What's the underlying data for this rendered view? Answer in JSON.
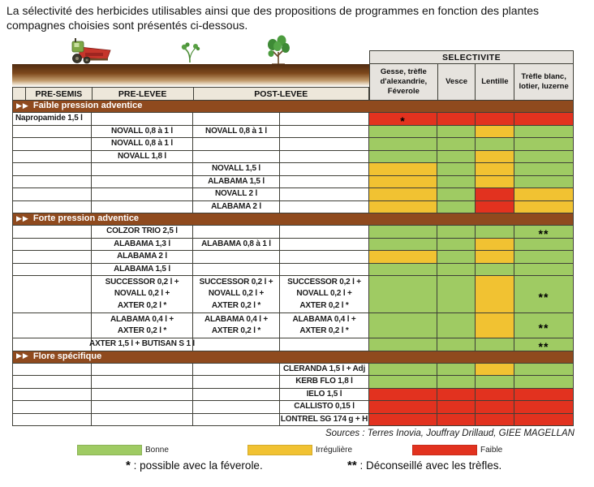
{
  "intro": "La sélectivité des herbicides utilisables ainsi que des propositions de programmes en fonction des plantes compagnes choisies sont présentés ci-dessous.",
  "colors": {
    "good": "#9FCB63",
    "irregular": "#F1C232",
    "poor": "#E2321F",
    "section_brown": "#8F4A1E"
  },
  "icons": {
    "pre_semis": "tractor-icon",
    "pre_levee": "seedling-icon",
    "post_levee": "plant-icon"
  },
  "table": {
    "arrow_glyph": "▶▶",
    "selectivity_title": "SELECTIVITE",
    "stage_columns": [
      "PRE-SEMIS",
      "PRE-LEVEE",
      "POST-LEVEE"
    ],
    "species_columns": [
      "Gesse, trèfle\nd'alexandrie,\nFéverole",
      "Vesce",
      "Lentille",
      "Trèfle blanc,\nlotier, luzerne"
    ],
    "sections": [
      {
        "title": "Faible pression adventice",
        "rows": [
          {
            "cells": [
              "Napropamide 1,5 l",
              "",
              "",
              ""
            ],
            "sel": [
              "R",
              "R",
              "R",
              "R"
            ],
            "marks": [
              "*",
              "",
              "",
              ""
            ]
          },
          {
            "cells": [
              "",
              "NOVALL 0,8 à 1 l",
              "NOVALL 0,8 à 1 l",
              ""
            ],
            "sel": [
              "G",
              "G",
              "Y",
              "G"
            ]
          },
          {
            "cells": [
              "",
              "NOVALL 0,8 à 1 l",
              "",
              ""
            ],
            "sel": [
              "G",
              "G",
              "G",
              "G"
            ]
          },
          {
            "cells": [
              "",
              "NOVALL 1,8 l",
              "",
              ""
            ],
            "sel": [
              "G",
              "G",
              "Y",
              "G"
            ]
          },
          {
            "cells": [
              "",
              "",
              "NOVALL 1,5 l",
              ""
            ],
            "sel": [
              "Y",
              "G",
              "Y",
              "G"
            ]
          },
          {
            "cells": [
              "",
              "",
              "ALABAMA 1,5 l",
              ""
            ],
            "sel": [
              "Y",
              "G",
              "Y",
              "G"
            ]
          },
          {
            "cells": [
              "",
              "",
              "NOVALL 2 l",
              ""
            ],
            "sel": [
              "Y",
              "G",
              "R",
              "Y"
            ]
          },
          {
            "cells": [
              "",
              "",
              "ALABAMA 2 l",
              ""
            ],
            "sel": [
              "Y",
              "G",
              "R",
              "Y"
            ]
          }
        ]
      },
      {
        "title": "Forte pression adventice",
        "rows": [
          {
            "cells": [
              "",
              "COLZOR TRIO 2,5 l",
              "",
              ""
            ],
            "sel": [
              "G",
              "G",
              "G",
              "G"
            ],
            "marks": [
              "",
              "",
              "",
              "**"
            ]
          },
          {
            "cells": [
              "",
              "ALABAMA 1,3 l",
              "ALABAMA 0,8 à 1 l",
              ""
            ],
            "sel": [
              "G",
              "G",
              "Y",
              "G"
            ]
          },
          {
            "cells": [
              "",
              "ALABAMA 2 l",
              "",
              ""
            ],
            "sel": [
              "Y",
              "G",
              "Y",
              "G"
            ]
          },
          {
            "cells": [
              "",
              "ALABAMA 1,5 l",
              "",
              ""
            ],
            "sel": [
              "G",
              "G",
              "G",
              "G"
            ]
          },
          {
            "cells": [
              "",
              "SUCCESSOR 0,2 l +\nNOVALL 0,2 l +\nAXTER 0,2 l *",
              "SUCCESSOR 0,2 l +\nNOVALL 0,2 l +\nAXTER 0,2 l *",
              "SUCCESSOR 0,2 l +\nNOVALL 0,2 l +\nAXTER 0,2 l *"
            ],
            "sel": [
              "G",
              "G",
              "Y",
              "G"
            ],
            "marks": [
              "",
              "",
              "",
              "**"
            ],
            "h": 46
          },
          {
            "cells": [
              "",
              "ALABAMA 0,4 l +\nAXTER 0,2 l *",
              "ALABAMA 0,4 l +\nAXTER 0,2 l *",
              "ALABAMA 0,4 l +\nAXTER 0,2 l *"
            ],
            "sel": [
              "G",
              "G",
              "Y",
              "G"
            ],
            "marks": [
              "",
              "",
              "",
              "**"
            ],
            "h": 31
          },
          {
            "cells": [
              "",
              "AXTER 1,5 l + BUTISAN S 1 l",
              "",
              ""
            ],
            "sel": [
              "G",
              "G",
              "G",
              "G"
            ],
            "marks": [
              "",
              "",
              "",
              "**"
            ]
          }
        ]
      },
      {
        "title": "Flore spécifique",
        "rows": [
          {
            "cells": [
              "",
              "",
              "",
              "CLERANDA 1,5 l + Adj"
            ],
            "sel": [
              "G",
              "G",
              "Y",
              "G"
            ]
          },
          {
            "cells": [
              "",
              "",
              "",
              "KERB FLO 1,8 l"
            ],
            "sel": [
              "G",
              "G",
              "G",
              "G"
            ]
          },
          {
            "cells": [
              "",
              "",
              "",
              "IELO 1,5 l"
            ],
            "sel": [
              "R",
              "R",
              "R",
              "R"
            ]
          },
          {
            "cells": [
              "",
              "",
              "",
              "CALLISTO 0,15 l"
            ],
            "sel": [
              "R",
              "R",
              "R",
              "R"
            ]
          },
          {
            "cells": [
              "",
              "",
              "",
              "LONTREL SG 174 g + H"
            ],
            "sel": [
              "R",
              "R",
              "R",
              "R"
            ]
          }
        ]
      }
    ]
  },
  "sources": "Sources : Terres Inovia, Jouffray Drillaud, GIEE MAGELLAN",
  "legend": [
    {
      "label": "Bonne",
      "level": "G"
    },
    {
      "label": "Irrégulière",
      "level": "Y"
    },
    {
      "label": "Faible",
      "level": "R"
    }
  ],
  "footnotes": [
    {
      "mark": "*",
      "text": ": possible avec la féverole."
    },
    {
      "mark": "**",
      "text": ": Déconseillé avec les trèfles."
    }
  ]
}
